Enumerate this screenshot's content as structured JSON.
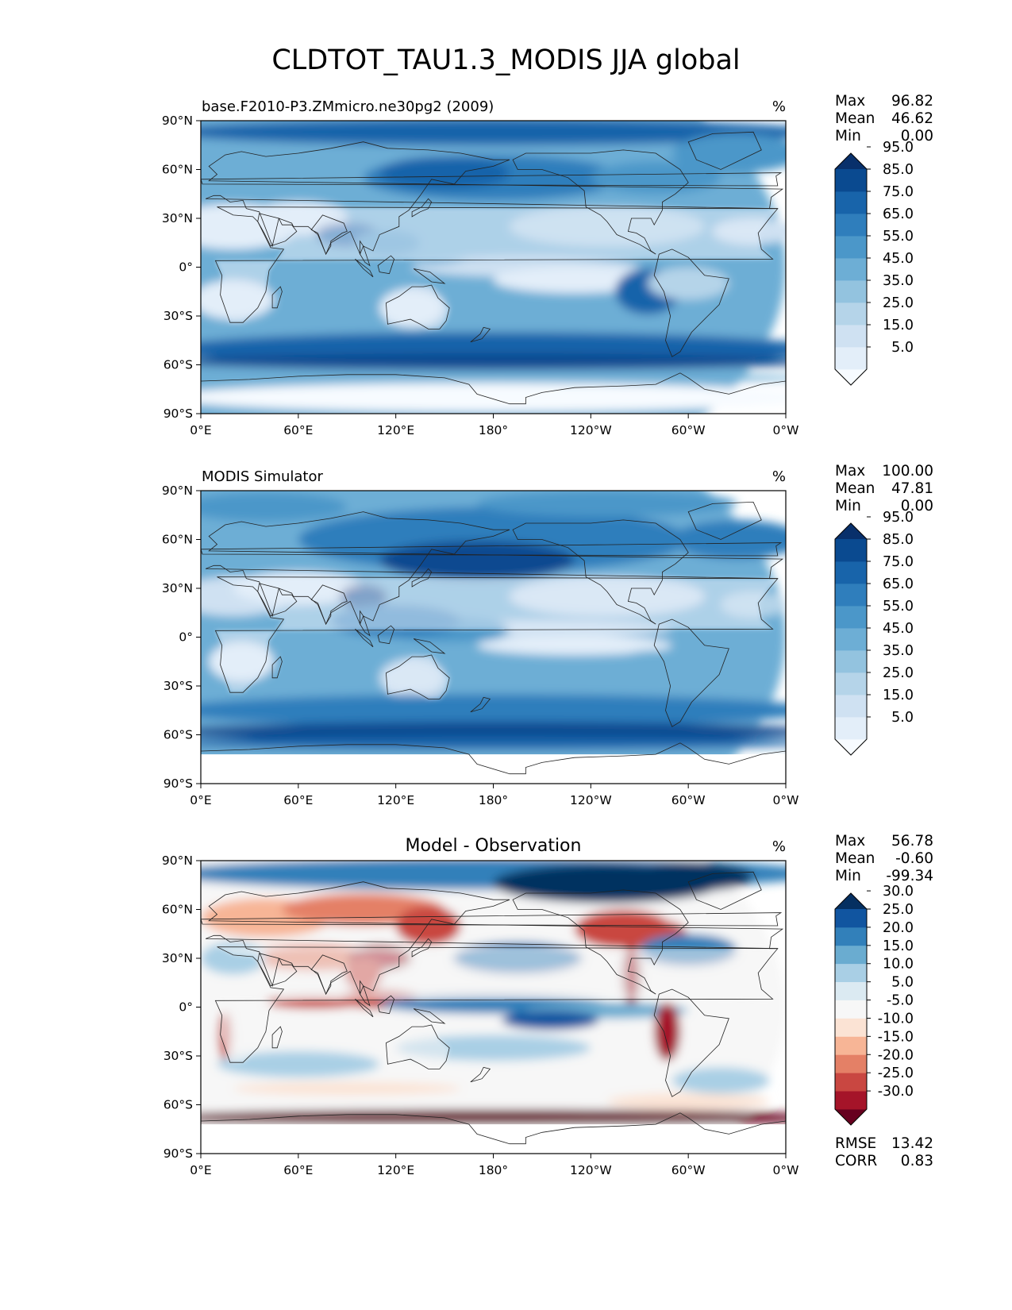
{
  "figure_title": "CLDTOT_TAU1.3_MODIS JJA global",
  "panels": [
    {
      "key": "test",
      "title_left": "base.F2010-P3.ZMmicro.ne30pg2 (2009)",
      "title_center": "",
      "units": "%",
      "stats": {
        "labels": [
          "Max",
          "Mean",
          "Min"
        ],
        "values": [
          "96.82",
          "46.62",
          "0.00"
        ]
      },
      "colorbar": {
        "ticks": [
          "5.0",
          "15.0",
          "25.0",
          "35.0",
          "45.0",
          "55.0",
          "65.0",
          "75.0",
          "85.0",
          "95.0"
        ],
        "colors": [
          "#f7fbff",
          "#e3eef9",
          "#cfe1f2",
          "#b5d4e9",
          "#93c3df",
          "#6daed5",
          "#4b97c9",
          "#2f7ebc",
          "#1864aa",
          "#0a4a90",
          "#08306b"
        ],
        "extend": "both"
      }
    },
    {
      "key": "reference",
      "title_left": "MODIS Simulator",
      "title_center": "",
      "units": "%",
      "stats": {
        "labels": [
          "Max",
          "Mean",
          "Min"
        ],
        "values": [
          "100.00",
          "47.81",
          "0.00"
        ]
      },
      "colorbar": {
        "ticks": [
          "5.0",
          "15.0",
          "25.0",
          "35.0",
          "45.0",
          "55.0",
          "65.0",
          "75.0",
          "85.0",
          "95.0"
        ],
        "colors": [
          "#f7fbff",
          "#e3eef9",
          "#cfe1f2",
          "#b5d4e9",
          "#93c3df",
          "#6daed5",
          "#4b97c9",
          "#2f7ebc",
          "#1864aa",
          "#0a4a90",
          "#08306b"
        ],
        "extend": "both"
      }
    },
    {
      "key": "diff",
      "title_left": "",
      "title_center": "Model - Observation",
      "units": "%",
      "stats": {
        "labels": [
          "Max",
          "Mean",
          "Min"
        ],
        "values": [
          "56.78",
          "-0.60",
          "-99.34"
        ]
      },
      "colorbar": {
        "ticks": [
          "-30.0",
          "-25.0",
          "-20.0",
          "-15.0",
          "-10.0",
          "-5.0",
          "5.0",
          "10.0",
          "15.0",
          "20.0",
          "25.0",
          "30.0"
        ],
        "colors": [
          "#67001f",
          "#a51429",
          "#c94741",
          "#e48066",
          "#f7b596",
          "#fbe3d4",
          "#f7f7f7",
          "#dbeaf2",
          "#a9cfe5",
          "#6aacd0",
          "#3280ba",
          "#1155a0",
          "#053061"
        ],
        "extend": "both"
      },
      "metrics": {
        "labels": [
          "RMSE",
          "CORR"
        ],
        "values": [
          "13.42",
          "0.83"
        ]
      }
    }
  ],
  "axes": {
    "x_ticks": [
      "0°E",
      "60°E",
      "120°E",
      "180°",
      "120°W",
      "60°W",
      "0°W"
    ],
    "y_ticks": [
      "90°N",
      "60°N",
      "30°N",
      "0°",
      "30°S",
      "60°S",
      "90°S"
    ]
  },
  "chart_data": [
    {
      "type": "heatmap",
      "name": "test",
      "units": "%",
      "lon_range": [
        0,
        360
      ],
      "lat_range": [
        -90,
        90
      ],
      "levels": [
        0,
        5,
        15,
        25,
        35,
        45,
        55,
        65,
        75,
        85,
        95,
        100
      ],
      "approx_values_by_latitude": {
        "lat": [
          85,
          75,
          65,
          55,
          45,
          35,
          25,
          15,
          5,
          -5,
          -15,
          -25,
          -35,
          -45,
          -55,
          -65,
          -75,
          -85
        ],
        "zonal_mean": [
          75,
          62,
          55,
          52,
          48,
          40,
          35,
          40,
          50,
          40,
          30,
          35,
          50,
          70,
          80,
          70,
          10,
          5
        ]
      },
      "max": 96.82,
      "mean": 46.62,
      "min": 0.0
    },
    {
      "type": "heatmap",
      "name": "reference",
      "units": "%",
      "lon_range": [
        0,
        360
      ],
      "lat_range": [
        -90,
        90
      ],
      "levels": [
        0,
        5,
        15,
        25,
        35,
        45,
        55,
        65,
        75,
        85,
        95,
        100
      ],
      "approx_values_by_latitude": {
        "lat": [
          85,
          75,
          65,
          55,
          45,
          35,
          25,
          15,
          5,
          -5,
          -15,
          -25,
          -35,
          -45,
          -55,
          -65,
          -75,
          -85
        ],
        "zonal_mean": [
          70,
          55,
          50,
          55,
          55,
          42,
          35,
          45,
          55,
          48,
          38,
          40,
          55,
          70,
          80,
          85,
          null,
          null
        ]
      },
      "max": 100.0,
      "mean": 47.81,
      "min": 0.0
    },
    {
      "type": "heatmap",
      "name": "difference",
      "units": "%",
      "lon_range": [
        0,
        360
      ],
      "lat_range": [
        -90,
        90
      ],
      "levels": [
        -100,
        -30,
        -25,
        -20,
        -15,
        -10,
        -5,
        5,
        10,
        15,
        20,
        25,
        30,
        60
      ],
      "approx_values_by_latitude": {
        "lat": [
          85,
          75,
          65,
          55,
          45,
          35,
          25,
          15,
          5,
          -5,
          -15,
          -25,
          -35,
          -45,
          -55,
          -65,
          -75,
          -85
        ],
        "zonal_mean": [
          15,
          8,
          2,
          -3,
          -5,
          0,
          2,
          -3,
          -5,
          -5,
          -3,
          -2,
          0,
          0,
          -3,
          -25,
          null,
          null
        ]
      },
      "max": 56.78,
      "mean": -0.6,
      "min": -99.34,
      "rmse": 13.42,
      "corr": 0.83
    }
  ]
}
